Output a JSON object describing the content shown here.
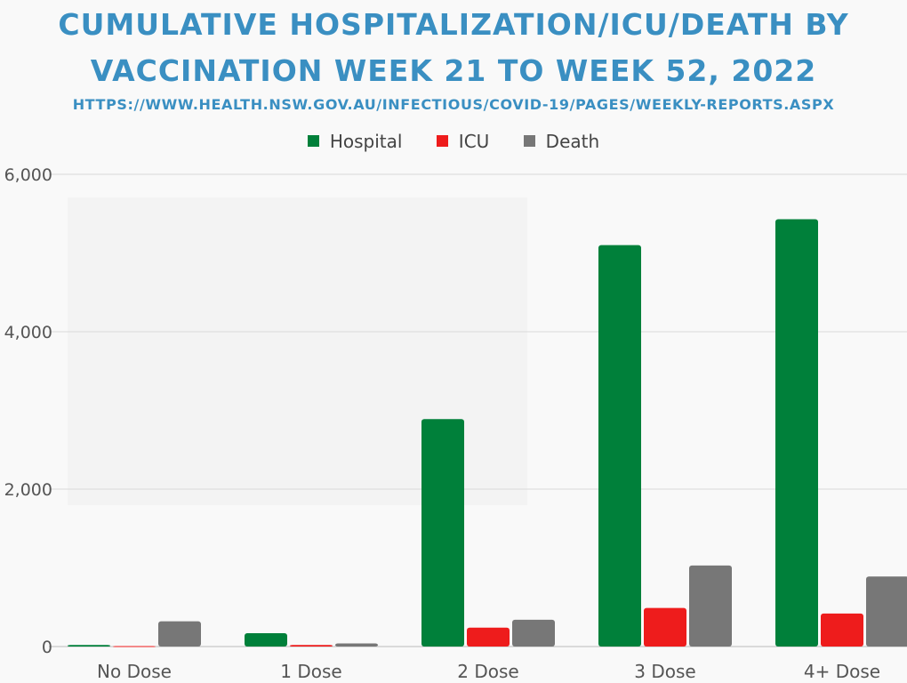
{
  "header": {
    "title_line1": "CUMULATIVE HOSPITALIZATION/ICU/DEATH BY",
    "title_line2": "VACCINATION WEEK 21 TO WEEK 52, 2022",
    "source_url": "HTTPS://WWW.HEALTH.NSW.GOV.AU/INFECTIOUS/COVID-19/PAGES/WEEKLY-REPORTS.ASPX"
  },
  "colors": {
    "title": "#3a8fc2",
    "hospital": "#00803a",
    "icu": "#ee1c1c",
    "death": "#777777",
    "grid": "#d9d9d9",
    "background": "#f9f9f9"
  },
  "chart_data": {
    "type": "bar",
    "title": "CUMULATIVE HOSPITALIZATION/ICU/DEATH BY VACCINATION WEEK 21 TO WEEK 52, 2022",
    "categories": [
      "No Dose",
      "1 Dose",
      "2 Dose",
      "3 Dose",
      "4+ Dose"
    ],
    "series": [
      {
        "name": "Hospital",
        "color": "#00803a",
        "values": [
          20,
          170,
          2890,
          5100,
          5430
        ]
      },
      {
        "name": "ICU",
        "color": "#ee1c1c",
        "values": [
          5,
          20,
          240,
          490,
          420
        ]
      },
      {
        "name": "Death",
        "color": "#777777",
        "values": [
          320,
          40,
          340,
          1030,
          890
        ]
      }
    ],
    "yticks": [
      0,
      2000,
      4000,
      6000
    ],
    "ytick_labels": [
      "0",
      "2,000",
      "4,000",
      "6,000"
    ],
    "ylim": [
      0,
      6000
    ],
    "xlabel": "",
    "ylabel": "",
    "legend_position": "top-center",
    "grid": true
  }
}
